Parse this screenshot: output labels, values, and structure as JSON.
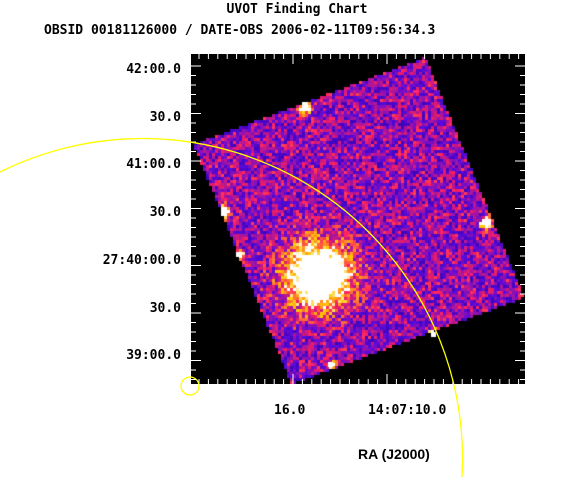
{
  "title": "UVOT Finding Chart",
  "subtitle": "OBSID 00181126000 / DATE-OBS 2006-02-11T09:56:34.3",
  "y_ticks": [
    "42:00.0",
    "30.0",
    "41:00.0",
    "30.0",
    "27:40:00.0",
    "30.0",
    "39:00.0"
  ],
  "x_ticks": [
    "16.0",
    "14:07:10.0"
  ],
  "x_label": "RA (J2000)",
  "colors": {
    "circle": "#ffff00",
    "background": "#000000",
    "frame": "#ffffff"
  }
}
